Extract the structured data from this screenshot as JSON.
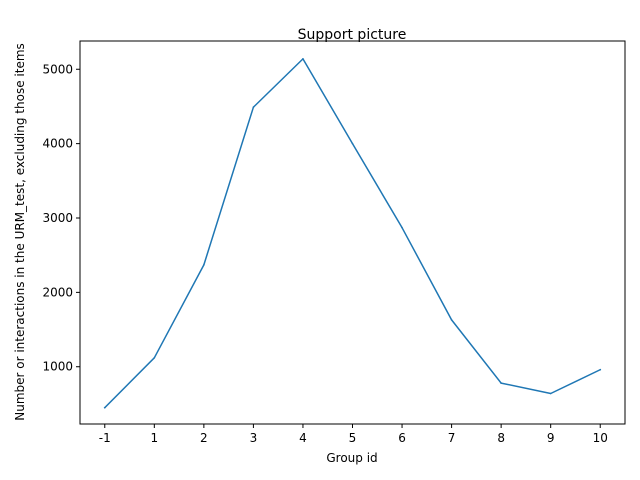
{
  "chart_data": {
    "type": "line",
    "title": "Support picture",
    "xlabel": "Group id",
    "ylabel": "Number or interactions in the URM_test, excluding those items",
    "categories": [
      "-1",
      "1",
      "2",
      "3",
      "4",
      "5",
      "6",
      "7",
      "8",
      "9",
      "10"
    ],
    "series": [
      {
        "values": [
          450,
          1120,
          2370,
          4490,
          5140,
          4000,
          2870,
          1630,
          780,
          640,
          960
        ]
      }
    ],
    "ylim": [
      230,
      5380
    ],
    "yticks": [
      1000,
      2000,
      3000,
      4000,
      5000
    ],
    "grid": false,
    "line_color": "#1f77b4"
  }
}
